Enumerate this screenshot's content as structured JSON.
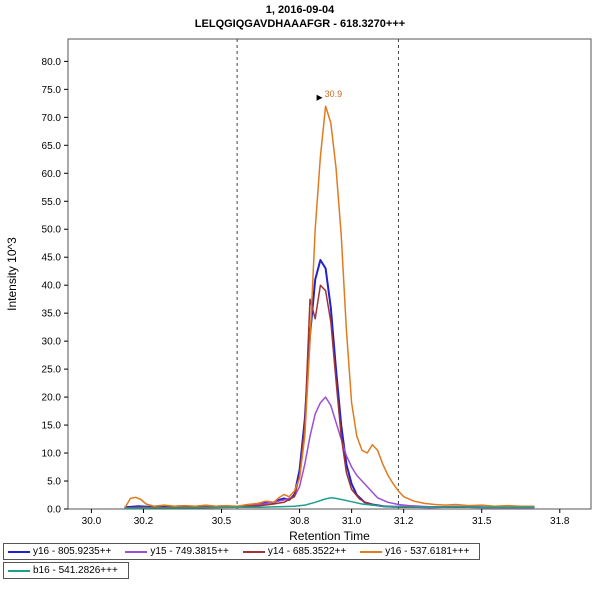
{
  "title": {
    "line1": "1, 2016-09-04",
    "line2": "LELQGIQGAVDHAAAFGR - 618.3270+++"
  },
  "annotation": {
    "peak_label": "30.9",
    "peak_x": 30.9,
    "peak_y": 72,
    "color": "#d2691e"
  },
  "chart_data": {
    "type": "line",
    "title": "1, 2016-09-04 / LELQGIQGAVDHAAAFGR - 618.3270+++",
    "xlabel": "Retention Time",
    "ylabel": "Intensity 10^3",
    "xlim": [
      29.91,
      31.92
    ],
    "ylim": [
      0,
      84
    ],
    "grid": false,
    "legend_position": "bottom",
    "x_tick_values": [
      30.0,
      30.2,
      30.5,
      30.8,
      31.0,
      31.2,
      31.5,
      31.8
    ],
    "x_tick_labels": [
      "30.0",
      "30.2",
      "30.5",
      "30.8",
      "31.0",
      "31.2",
      "31.5",
      "31.8"
    ],
    "y_tick_values": [
      0,
      5,
      10,
      15,
      20,
      25,
      30,
      35,
      40,
      45,
      50,
      55,
      60,
      65,
      70,
      75,
      80
    ],
    "y_tick_labels": [
      "0.0",
      "5.0",
      "10.0",
      "15.0",
      "20.0",
      "25.0",
      "30.0",
      "35.0",
      "40.0",
      "45.0",
      "50.0",
      "55.0",
      "60.0",
      "65.0",
      "70.0",
      "75.0",
      "80.0"
    ],
    "peak_boundaries": [
      30.56,
      31.18
    ],
    "series": [
      {
        "name": "y16 - 805.9235++",
        "color": "#2222cc",
        "width": 2,
        "points": [
          [
            30.13,
            0.3
          ],
          [
            30.18,
            0.5
          ],
          [
            30.22,
            0.4
          ],
          [
            30.26,
            0.5
          ],
          [
            30.3,
            0.4
          ],
          [
            30.34,
            0.5
          ],
          [
            30.38,
            0.4
          ],
          [
            30.42,
            0.5
          ],
          [
            30.46,
            0.4
          ],
          [
            30.5,
            0.5
          ],
          [
            30.54,
            0.4
          ],
          [
            30.58,
            0.5
          ],
          [
            30.62,
            0.6
          ],
          [
            30.65,
            0.8
          ],
          [
            30.68,
            1.3
          ],
          [
            30.7,
            1.1
          ],
          [
            30.72,
            1.6
          ],
          [
            30.74,
            1.9
          ],
          [
            30.76,
            1.6
          ],
          [
            30.78,
            2.6
          ],
          [
            30.8,
            7
          ],
          [
            30.82,
            16
          ],
          [
            30.84,
            31
          ],
          [
            30.86,
            41
          ],
          [
            30.88,
            44.5
          ],
          [
            30.9,
            43
          ],
          [
            30.92,
            36
          ],
          [
            30.94,
            25
          ],
          [
            30.96,
            15
          ],
          [
            30.98,
            8
          ],
          [
            31.0,
            4.5
          ],
          [
            31.02,
            2.5
          ],
          [
            31.05,
            1.2
          ],
          [
            31.08,
            0.8
          ],
          [
            31.12,
            0.5
          ],
          [
            31.16,
            0.4
          ],
          [
            31.2,
            0.4
          ],
          [
            31.3,
            0.3
          ],
          [
            31.4,
            0.4
          ],
          [
            31.5,
            0.3
          ],
          [
            31.6,
            0.3
          ],
          [
            31.7,
            0.3
          ]
        ]
      },
      {
        "name": "y15 - 749.3815++",
        "color": "#9b4fd6",
        "width": 1.5,
        "points": [
          [
            30.13,
            0.2
          ],
          [
            30.2,
            0.3
          ],
          [
            30.3,
            0.3
          ],
          [
            30.4,
            0.4
          ],
          [
            30.5,
            0.4
          ],
          [
            30.58,
            0.5
          ],
          [
            30.62,
            0.6
          ],
          [
            30.66,
            0.9
          ],
          [
            30.7,
            1.2
          ],
          [
            30.74,
            1.6
          ],
          [
            30.78,
            2.2
          ],
          [
            30.8,
            4
          ],
          [
            30.82,
            8
          ],
          [
            30.84,
            13
          ],
          [
            30.86,
            17
          ],
          [
            30.88,
            19
          ],
          [
            30.9,
            20
          ],
          [
            30.92,
            18.5
          ],
          [
            30.94,
            15.5
          ],
          [
            30.96,
            12.5
          ],
          [
            30.98,
            9.5
          ],
          [
            31.0,
            7.5
          ],
          [
            31.02,
            6
          ],
          [
            31.04,
            5
          ],
          [
            31.06,
            4
          ],
          [
            31.08,
            3
          ],
          [
            31.1,
            2
          ],
          [
            31.14,
            1.2
          ],
          [
            31.18,
            0.8
          ],
          [
            31.22,
            0.6
          ],
          [
            31.3,
            0.4
          ],
          [
            31.4,
            0.4
          ],
          [
            31.5,
            0.3
          ],
          [
            31.6,
            0.3
          ],
          [
            31.7,
            0.3
          ]
        ]
      },
      {
        "name": "y14 - 685.3522++",
        "color": "#a03333",
        "width": 1.5,
        "points": [
          [
            30.13,
            0.2
          ],
          [
            30.25,
            0.3
          ],
          [
            30.4,
            0.3
          ],
          [
            30.55,
            0.4
          ],
          [
            30.65,
            0.6
          ],
          [
            30.7,
            0.9
          ],
          [
            30.74,
            1.2
          ],
          [
            30.78,
            2.2
          ],
          [
            30.8,
            6
          ],
          [
            30.82,
            15
          ],
          [
            30.84,
            37.5
          ],
          [
            30.86,
            34
          ],
          [
            30.88,
            40
          ],
          [
            30.9,
            39
          ],
          [
            30.92,
            33.5
          ],
          [
            30.94,
            23
          ],
          [
            30.96,
            13
          ],
          [
            30.98,
            6.5
          ],
          [
            31.0,
            3.5
          ],
          [
            31.03,
            1.8
          ],
          [
            31.06,
            1.0
          ],
          [
            31.1,
            0.6
          ],
          [
            31.15,
            0.4
          ],
          [
            31.2,
            0.3
          ],
          [
            31.3,
            0.3
          ],
          [
            31.4,
            0.3
          ],
          [
            31.5,
            0.3
          ],
          [
            31.6,
            0.3
          ],
          [
            31.7,
            0.3
          ]
        ]
      },
      {
        "name": "y16 - 537.6181+++",
        "color": "#e07b20",
        "width": 1.5,
        "points": [
          [
            30.13,
            0.3
          ],
          [
            30.15,
            1.9
          ],
          [
            30.17,
            2.1
          ],
          [
            30.19,
            1.7
          ],
          [
            30.21,
            0.9
          ],
          [
            30.24,
            0.5
          ],
          [
            30.28,
            0.7
          ],
          [
            30.32,
            0.5
          ],
          [
            30.36,
            0.6
          ],
          [
            30.4,
            0.5
          ],
          [
            30.44,
            0.7
          ],
          [
            30.48,
            0.5
          ],
          [
            30.52,
            0.6
          ],
          [
            30.56,
            0.5
          ],
          [
            30.6,
            0.8
          ],
          [
            30.64,
            1.0
          ],
          [
            30.67,
            1.4
          ],
          [
            30.7,
            1.2
          ],
          [
            30.72,
            2.0
          ],
          [
            30.74,
            2.6
          ],
          [
            30.76,
            2.2
          ],
          [
            30.78,
            3.2
          ],
          [
            30.8,
            5.5
          ],
          [
            30.82,
            13
          ],
          [
            30.84,
            30
          ],
          [
            30.86,
            50
          ],
          [
            30.88,
            63
          ],
          [
            30.9,
            72
          ],
          [
            30.92,
            69
          ],
          [
            30.94,
            61
          ],
          [
            30.96,
            49
          ],
          [
            30.98,
            32
          ],
          [
            31.0,
            19
          ],
          [
            31.02,
            13
          ],
          [
            31.04,
            10.5
          ],
          [
            31.06,
            10
          ],
          [
            31.08,
            11.5
          ],
          [
            31.1,
            10.5
          ],
          [
            31.12,
            8
          ],
          [
            31.14,
            6
          ],
          [
            31.16,
            4.5
          ],
          [
            31.18,
            3.2
          ],
          [
            31.2,
            2.2
          ],
          [
            31.24,
            1.4
          ],
          [
            31.28,
            1.0
          ],
          [
            31.32,
            0.8
          ],
          [
            31.36,
            0.7
          ],
          [
            31.4,
            0.8
          ],
          [
            31.45,
            0.6
          ],
          [
            31.5,
            0.7
          ],
          [
            31.55,
            0.5
          ],
          [
            31.6,
            0.6
          ],
          [
            31.65,
            0.5
          ],
          [
            31.7,
            0.5
          ]
        ]
      },
      {
        "name": "b16 - 541.2826+++",
        "color": "#1f9e8e",
        "width": 1.5,
        "points": [
          [
            30.13,
            0.1
          ],
          [
            30.25,
            0.2
          ],
          [
            30.4,
            0.2
          ],
          [
            30.55,
            0.3
          ],
          [
            30.65,
            0.3
          ],
          [
            30.72,
            0.4
          ],
          [
            30.78,
            0.5
          ],
          [
            30.82,
            0.7
          ],
          [
            30.86,
            1.2
          ],
          [
            30.9,
            1.8
          ],
          [
            30.92,
            2.0
          ],
          [
            30.94,
            1.9
          ],
          [
            30.97,
            1.6
          ],
          [
            31.0,
            1.3
          ],
          [
            31.04,
            0.9
          ],
          [
            31.08,
            0.7
          ],
          [
            31.12,
            0.5
          ],
          [
            31.16,
            0.4
          ],
          [
            31.2,
            0.4
          ],
          [
            31.3,
            0.3
          ],
          [
            31.4,
            0.4
          ],
          [
            31.5,
            0.3
          ],
          [
            31.6,
            0.3
          ],
          [
            31.7,
            0.3
          ]
        ]
      }
    ]
  },
  "legend": {
    "items": [
      {
        "label": "y16 - 805.9235++",
        "color": "#2222cc"
      },
      {
        "label": "y15 - 749.3815++",
        "color": "#9b4fd6"
      },
      {
        "label": "y14 - 685.3522++",
        "color": "#a03333"
      },
      {
        "label": "y16 - 537.6181+++",
        "color": "#e07b20"
      },
      {
        "label": "b16 - 541.2826+++",
        "color": "#1f9e8e"
      }
    ]
  }
}
